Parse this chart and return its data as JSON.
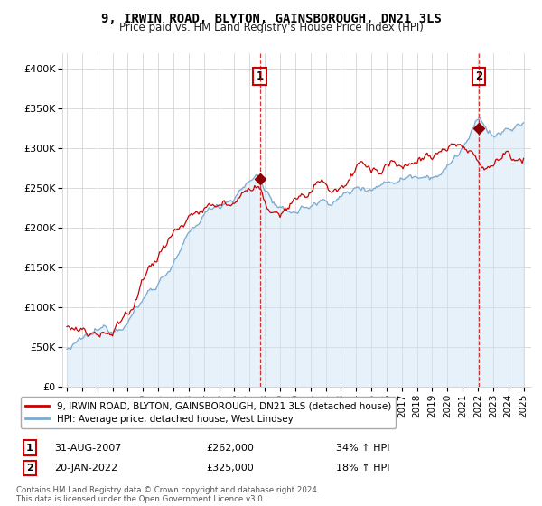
{
  "title": "9, IRWIN ROAD, BLYTON, GAINSBOROUGH, DN21 3LS",
  "subtitle": "Price paid vs. HM Land Registry's House Price Index (HPI)",
  "ylim": [
    0,
    420000
  ],
  "yticks": [
    0,
    50000,
    100000,
    150000,
    200000,
    250000,
    300000,
    350000,
    400000
  ],
  "ytick_labels": [
    "£0",
    "£50K",
    "£100K",
    "£150K",
    "£200K",
    "£250K",
    "£300K",
    "£350K",
    "£400K"
  ],
  "sale1_year": 2007.667,
  "sale1_price": 262000,
  "sale2_year": 2022.05,
  "sale2_price": 325000,
  "red_line_color": "#cc0000",
  "blue_line_color": "#7aaad0",
  "blue_fill_color": "#d0e4f5",
  "marker_color": "#8b0000",
  "grid_color": "#cccccc",
  "background_color": "#ffffff",
  "legend_line1": "9, IRWIN ROAD, BLYTON, GAINSBOROUGH, DN21 3LS (detached house)",
  "legend_line2": "HPI: Average price, detached house, West Lindsey",
  "table_row1_num": "1",
  "table_row1_date": "31-AUG-2007",
  "table_row1_price": "£262,000",
  "table_row1_hpi": "34% ↑ HPI",
  "table_row2_num": "2",
  "table_row2_date": "20-JAN-2022",
  "table_row2_price": "£325,000",
  "table_row2_hpi": "18% ↑ HPI",
  "footer": "Contains HM Land Registry data © Crown copyright and database right 2024.\nThis data is licensed under the Open Government Licence v3.0."
}
